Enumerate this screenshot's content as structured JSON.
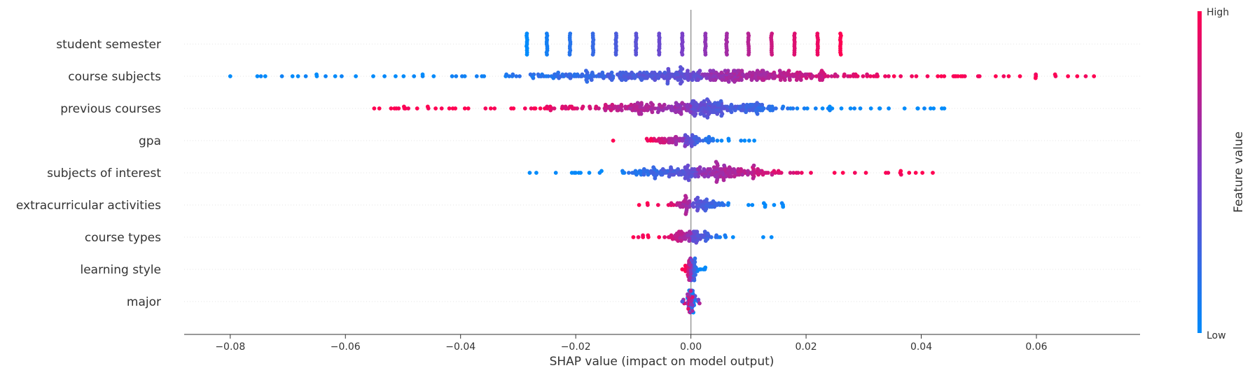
{
  "chart_data": {
    "type": "scatter",
    "subtype": "shap-beeswarm",
    "title": "",
    "xlabel": "SHAP value (impact on model output)",
    "xlim": [
      -0.088,
      0.078
    ],
    "xticks": [
      -0.08,
      -0.06,
      -0.04,
      -0.02,
      0.0,
      0.02,
      0.04,
      0.06
    ],
    "xtick_labels": [
      "−0.08",
      "−0.06",
      "−0.04",
      "−0.02",
      "0.00",
      "0.02",
      "0.04",
      "0.06"
    ],
    "grid": false,
    "row_guides": "dotted",
    "colorbar": {
      "label": "Feature value",
      "high_label": "High",
      "low_label": "Low",
      "low_color": "#008bfb",
      "mid_color": "#7b3fc8",
      "high_color": "#ff0052"
    },
    "features": [
      {
        "name": "student semester",
        "x_min": -0.029,
        "x_max": 0.026,
        "clusters": [
          {
            "x": -0.0285,
            "fv": 0.0
          },
          {
            "x": -0.025,
            "fv": 0.08
          },
          {
            "x": -0.021,
            "fv": 0.15
          },
          {
            "x": -0.017,
            "fv": 0.22
          },
          {
            "x": -0.013,
            "fv": 0.3
          },
          {
            "x": -0.0095,
            "fv": 0.37
          },
          {
            "x": -0.0055,
            "fv": 0.43
          },
          {
            "x": -0.0015,
            "fv": 0.5
          },
          {
            "x": 0.0025,
            "fv": 0.58
          },
          {
            "x": 0.0062,
            "fv": 0.65
          },
          {
            "x": 0.01,
            "fv": 0.72
          },
          {
            "x": 0.014,
            "fv": 0.8
          },
          {
            "x": 0.018,
            "fv": 0.87
          },
          {
            "x": 0.022,
            "fv": 0.93
          },
          {
            "x": 0.026,
            "fv": 1.0
          }
        ]
      },
      {
        "name": "course subjects",
        "x_min": -0.08,
        "x_max": 0.07,
        "center": 0.002,
        "direction": "positive-high"
      },
      {
        "name": "previous courses",
        "x_min": -0.055,
        "x_max": 0.044,
        "center": 0.0,
        "direction": "negative-high"
      },
      {
        "name": "gpa",
        "x_min": -0.0135,
        "x_max": 0.011,
        "center": -0.001,
        "direction": "negative-high"
      },
      {
        "name": "subjects of interest",
        "x_min": -0.028,
        "x_max": 0.042,
        "center": 0.001,
        "direction": "positive-high"
      },
      {
        "name": "extracurricular activities",
        "x_min": -0.009,
        "x_max": 0.016,
        "center": 0.0,
        "direction": "negative-high"
      },
      {
        "name": "course types",
        "x_min": -0.01,
        "x_max": 0.014,
        "center": 0.0,
        "direction": "negative-high"
      },
      {
        "name": "learning style",
        "x_min": -0.0015,
        "x_max": 0.0025,
        "center": 0.0,
        "direction": "negative-high"
      },
      {
        "name": "major",
        "x_min": -0.0015,
        "x_max": 0.0015,
        "center": 0.0,
        "direction": "mixed"
      }
    ]
  }
}
